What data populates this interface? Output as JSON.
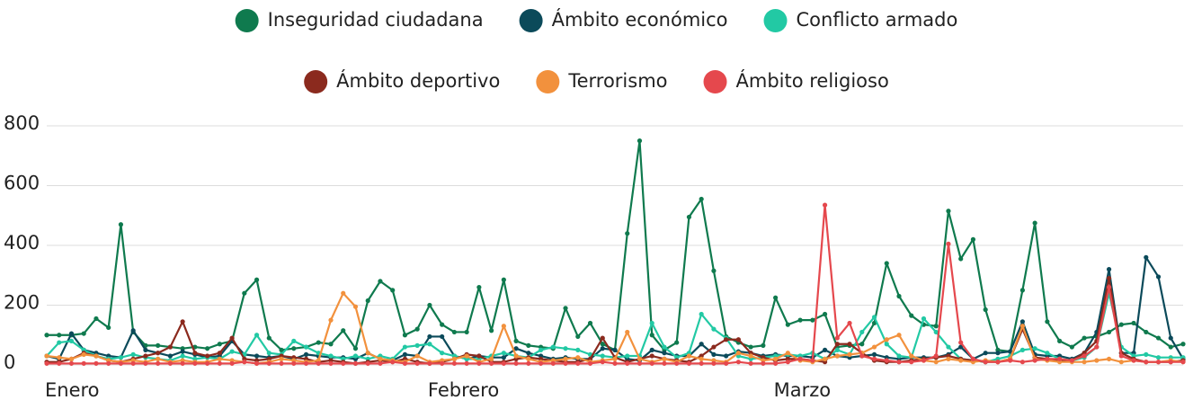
{
  "chart_data": {
    "type": "line",
    "categories": [
      "Enero",
      null,
      null,
      null,
      null,
      null,
      null,
      null,
      null,
      null,
      null,
      null,
      null,
      null,
      null,
      null,
      null,
      null,
      null,
      null,
      null,
      null,
      null,
      null,
      null,
      null,
      null,
      null,
      null,
      null,
      null,
      "Febrero",
      null,
      null,
      null,
      null,
      null,
      null,
      null,
      null,
      null,
      null,
      null,
      null,
      null,
      null,
      null,
      null,
      null,
      null,
      null,
      null,
      null,
      null,
      null,
      null,
      null,
      null,
      null,
      "Marzo",
      null,
      null,
      null,
      null,
      null,
      null,
      null,
      null,
      null,
      null,
      null,
      null,
      null,
      null,
      null,
      null,
      null,
      null,
      null,
      null,
      null,
      null,
      null,
      null,
      null,
      null,
      null,
      null,
      null,
      null,
      null,
      null,
      null
    ],
    "ylim": [
      0,
      800
    ],
    "yticks": [
      0,
      200,
      400,
      600,
      800
    ],
    "grid": true,
    "legend": "top",
    "series": [
      {
        "name": "Inseguridad ciudadana",
        "color": "#0f7a4e",
        "values": [
          100,
          100,
          100,
          105,
          155,
          125,
          470,
          110,
          65,
          65,
          60,
          55,
          60,
          55,
          70,
          80,
          240,
          285,
          90,
          50,
          55,
          60,
          75,
          70,
          115,
          55,
          215,
          280,
          250,
          100,
          120,
          200,
          135,
          110,
          110,
          260,
          115,
          285,
          80,
          65,
          60,
          55,
          190,
          95,
          140,
          70,
          50,
          440,
          750,
          100,
          50,
          75,
          495,
          555,
          315,
          95,
          75,
          60,
          65,
          225,
          135,
          150,
          150,
          170,
          60,
          65,
          70,
          140,
          340,
          230,
          165,
          135,
          130,
          515,
          355,
          420,
          185,
          50,
          45,
          250,
          475,
          145,
          80,
          60,
          90,
          95,
          110,
          135,
          140,
          110,
          90,
          60,
          70
        ]
      },
      {
        "name": "Ámbito económico",
        "color": "#0b4a5a",
        "values": [
          30,
          20,
          105,
          50,
          40,
          30,
          25,
          115,
          50,
          40,
          30,
          45,
          35,
          25,
          30,
          80,
          35,
          30,
          25,
          30,
          20,
          35,
          30,
          25,
          25,
          20,
          40,
          20,
          15,
          35,
          30,
          95,
          95,
          30,
          20,
          30,
          25,
          25,
          55,
          40,
          30,
          20,
          25,
          20,
          20,
          55,
          50,
          20,
          15,
          50,
          40,
          30,
          30,
          70,
          35,
          30,
          45,
          40,
          30,
          35,
          30,
          30,
          25,
          50,
          30,
          25,
          30,
          35,
          25,
          20,
          25,
          25,
          25,
          35,
          60,
          20,
          40,
          40,
          45,
          145,
          35,
          30,
          30,
          20,
          40,
          110,
          320,
          40,
          40,
          360,
          295,
          90,
          20
        ]
      },
      {
        "name": "Conflicto armado",
        "color": "#22c9a4",
        "values": [
          30,
          75,
          80,
          50,
          30,
          20,
          25,
          35,
          25,
          20,
          15,
          30,
          20,
          25,
          20,
          45,
          35,
          100,
          40,
          35,
          80,
          60,
          40,
          30,
          20,
          30,
          20,
          30,
          20,
          60,
          65,
          70,
          40,
          30,
          20,
          20,
          30,
          40,
          30,
          25,
          50,
          60,
          55,
          50,
          35,
          30,
          25,
          30,
          30,
          140,
          60,
          25,
          40,
          170,
          120,
          90,
          30,
          20,
          25,
          30,
          35,
          30,
          40,
          20,
          50,
          35,
          110,
          160,
          70,
          30,
          25,
          155,
          110,
          60,
          20,
          15,
          10,
          20,
          30,
          50,
          55,
          40,
          20,
          15,
          25,
          60,
          240,
          60,
          30,
          35,
          25,
          25,
          25
        ]
      },
      {
        "name": "Ámbito deportivo",
        "color": "#8b2a1e",
        "values": [
          10,
          10,
          20,
          40,
          30,
          15,
          10,
          20,
          30,
          40,
          60,
          145,
          40,
          30,
          40,
          90,
          20,
          15,
          20,
          30,
          25,
          20,
          10,
          15,
          10,
          5,
          10,
          15,
          10,
          20,
          10,
          5,
          10,
          20,
          35,
          30,
          10,
          10,
          20,
          25,
          20,
          15,
          10,
          10,
          20,
          90,
          25,
          10,
          20,
          30,
          20,
          15,
          10,
          30,
          60,
          85,
          85,
          40,
          25,
          15,
          20,
          20,
          15,
          10,
          70,
          70,
          40,
          15,
          10,
          10,
          15,
          20,
          25,
          30,
          20,
          15,
          10,
          10,
          20,
          120,
          25,
          20,
          15,
          15,
          40,
          80,
          290,
          40,
          20,
          10,
          10,
          10,
          15
        ]
      },
      {
        "name": "Terrorismo",
        "color": "#f2913d",
        "values": [
          30,
          25,
          20,
          35,
          30,
          15,
          10,
          15,
          10,
          20,
          10,
          15,
          10,
          10,
          20,
          15,
          10,
          5,
          10,
          20,
          15,
          10,
          15,
          150,
          240,
          195,
          40,
          20,
          15,
          10,
          30,
          10,
          15,
          20,
          30,
          10,
          20,
          130,
          30,
          20,
          10,
          15,
          20,
          25,
          10,
          15,
          20,
          110,
          20,
          10,
          20,
          10,
          30,
          20,
          15,
          10,
          40,
          30,
          15,
          20,
          40,
          15,
          10,
          20,
          30,
          35,
          40,
          60,
          85,
          100,
          30,
          15,
          10,
          20,
          15,
          10,
          15,
          10,
          20,
          130,
          20,
          15,
          10,
          10,
          10,
          15,
          20,
          10,
          15,
          10,
          10,
          15,
          10
        ]
      },
      {
        "name": "Ámbito religioso",
        "color": "#e5484d",
        "values": [
          5,
          5,
          5,
          5,
          5,
          5,
          5,
          5,
          5,
          5,
          5,
          5,
          5,
          5,
          5,
          5,
          10,
          5,
          5,
          5,
          5,
          5,
          5,
          5,
          5,
          5,
          5,
          5,
          10,
          5,
          5,
          5,
          5,
          5,
          5,
          5,
          5,
          5,
          5,
          5,
          5,
          5,
          5,
          5,
          5,
          10,
          5,
          5,
          5,
          5,
          5,
          5,
          5,
          5,
          5,
          5,
          10,
          5,
          5,
          5,
          10,
          20,
          15,
          535,
          90,
          140,
          30,
          20,
          15,
          10,
          10,
          15,
          30,
          405,
          75,
          20,
          10,
          10,
          15,
          10,
          15,
          20,
          20,
          15,
          30,
          60,
          260,
          30,
          15,
          10,
          10,
          10,
          10
        ]
      }
    ]
  }
}
